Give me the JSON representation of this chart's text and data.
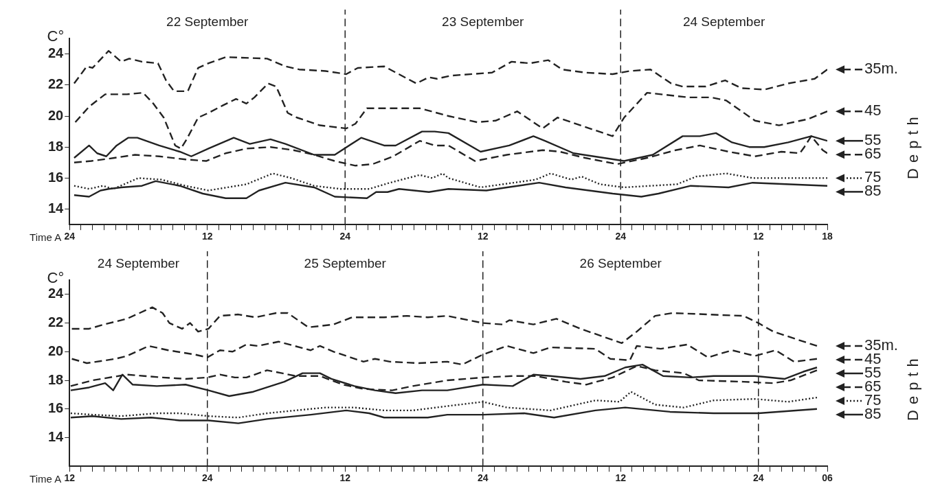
{
  "chart_data": [
    {
      "type": "line",
      "xlabel": "Time A",
      "ylabel": "C°",
      "legend_title": "Depth",
      "xlim": [
        "--09-22T00:00",
        "--09-24T18:00"
      ],
      "ylim": [
        13,
        25
      ],
      "yticks": [
        14,
        16,
        18,
        20,
        22,
        24
      ],
      "xticks": [
        {
          "value": "--09-22T00:00",
          "label": "24"
        },
        {
          "value": "--09-22T01:00",
          "label": null
        },
        {
          "value": "--09-22T02:00",
          "label": null
        },
        {
          "value": "--09-22T03:00",
          "label": null
        },
        {
          "value": "--09-22T04:00",
          "label": null
        },
        {
          "value": "--09-22T05:00",
          "label": null
        },
        {
          "value": "--09-22T06:00",
          "label": null
        },
        {
          "value": "--09-22T07:00",
          "label": null
        },
        {
          "value": "--09-22T08:00",
          "label": null
        },
        {
          "value": "--09-22T09:00",
          "label": null
        },
        {
          "value": "--09-22T10:00",
          "label": null
        },
        {
          "value": "--09-22T11:00",
          "label": null
        },
        {
          "value": "--09-22T12:00",
          "label": "12"
        },
        {
          "value": "--09-22T13:00",
          "label": null
        },
        {
          "value": "--09-22T14:00",
          "label": null
        },
        {
          "value": "--09-22T15:00",
          "label": null
        },
        {
          "value": "--09-22T16:00",
          "label": null
        },
        {
          "value": "--09-22T17:00",
          "label": null
        },
        {
          "value": "--09-22T18:00",
          "label": null
        },
        {
          "value": "--09-22T19:00",
          "label": null
        },
        {
          "value": "--09-22T20:00",
          "label": null
        },
        {
          "value": "--09-22T21:00",
          "label": null
        },
        {
          "value": "--09-22T22:00",
          "label": null
        },
        {
          "value": "--09-22T23:00",
          "label": null
        },
        {
          "value": "--09-23T00:00",
          "label": "24"
        },
        {
          "value": "--09-23T01:00",
          "label": null
        },
        {
          "value": "--09-23T02:00",
          "label": null
        },
        {
          "value": "--09-23T03:00",
          "label": null
        },
        {
          "value": "--09-23T04:00",
          "label": null
        },
        {
          "value": "--09-23T05:00",
          "label": null
        },
        {
          "value": "--09-23T06:00",
          "label": null
        },
        {
          "value": "--09-23T07:00",
          "label": null
        },
        {
          "value": "--09-23T08:00",
          "label": null
        },
        {
          "value": "--09-23T09:00",
          "label": null
        },
        {
          "value": "--09-23T10:00",
          "label": null
        },
        {
          "value": "--09-23T11:00",
          "label": null
        },
        {
          "value": "--09-23T12:00",
          "label": "12"
        },
        {
          "value": "--09-23T13:00",
          "label": null
        },
        {
          "value": "--09-23T14:00",
          "label": null
        },
        {
          "value": "--09-23T15:00",
          "label": null
        },
        {
          "value": "--09-23T16:00",
          "label": null
        },
        {
          "value": "--09-23T17:00",
          "label": null
        },
        {
          "value": "--09-23T18:00",
          "label": null
        },
        {
          "value": "--09-23T19:00",
          "label": null
        },
        {
          "value": "--09-23T20:00",
          "label": null
        },
        {
          "value": "--09-23T21:00",
          "label": null
        },
        {
          "value": "--09-23T22:00",
          "label": null
        },
        {
          "value": "--09-23T23:00",
          "label": null
        },
        {
          "value": "--09-24T00:00",
          "label": "24"
        },
        {
          "value": "--09-24T01:00",
          "label": null
        },
        {
          "value": "--09-24T02:00",
          "label": null
        },
        {
          "value": "--09-24T03:00",
          "label": null
        },
        {
          "value": "--09-24T04:00",
          "label": null
        },
        {
          "value": "--09-24T05:00",
          "label": null
        },
        {
          "value": "--09-24T06:00",
          "label": null
        },
        {
          "value": "--09-24T07:00",
          "label": null
        },
        {
          "value": "--09-24T08:00",
          "label": null
        },
        {
          "value": "--09-24T09:00",
          "label": null
        },
        {
          "value": "--09-24T10:00",
          "label": null
        },
        {
          "value": "--09-24T11:00",
          "label": null
        },
        {
          "value": "--09-24T12:00",
          "label": "12"
        },
        {
          "value": "--09-24T13:00",
          "label": null
        },
        {
          "value": "--09-24T14:00",
          "label": null
        },
        {
          "value": "--09-24T15:00",
          "label": null
        },
        {
          "value": "--09-24T16:00",
          "label": null
        },
        {
          "value": "--09-24T17:00",
          "label": null
        },
        {
          "value": "--09-24T18:00",
          "label": "18"
        }
      ],
      "annotations": [
        "22 September",
        "23 September",
        "24 September"
      ],
      "legend": "right",
      "ref_lines": [
        {
          "axis": "x",
          "value": "--09-23T00:00",
          "line_style": "dashed",
          "color": "#222222"
        },
        {
          "axis": "x",
          "value": "--09-24T00:00",
          "line_style": "dashed",
          "color": "#222222"
        }
      ],
      "series": [
        {
          "name": "35m.",
          "color": "#222222",
          "line_style": "dashed",
          "x": [
            "--09-22T00:24",
            "--09-22T01:30",
            "--09-22T02:00",
            "--09-22T03:24",
            "--09-22T04:30",
            "--09-22T05:12",
            "--09-22T06:18",
            "--09-22T07:42",
            "--09-22T08:24",
            "--09-22T09:06",
            "--09-22T10:18",
            "--09-22T11:12",
            "--09-22T12:06",
            "--09-22T13:36",
            "--09-22T17:12",
            "--09-22T18:48",
            "--09-22T20:00",
            "--09-22T22:18",
            "--09-23T00:06",
            "--09-23T01:06",
            "--09-23T03:24",
            "--09-23T06:12",
            "--09-23T07:18",
            "--09-23T08:00",
            "--09-23T09:12",
            "--09-23T12:48",
            "--09-23T14:30",
            "--09-23T16:06",
            "--09-23T17:42",
            "--09-23T18:54",
            "--09-23T20:54",
            "--09-23T23:18",
            "--09-24T00:48",
            "--09-24T02:36",
            "--09-24T04:24",
            "--09-24T05:24",
            "--09-24T07:24",
            "--09-24T09:06",
            "--09-24T10:30",
            "--09-24T12:30",
            "--09-24T14:36",
            "--09-24T16:54",
            "--09-24T18:00"
          ],
          "values": [
            22.1,
            23.2,
            23.1,
            24.2,
            23.5,
            23.7,
            23.5,
            23.4,
            22.3,
            21.6,
            21.6,
            23.1,
            23.4,
            23.8,
            23.7,
            23.2,
            23.0,
            22.9,
            22.7,
            23.1,
            23.2,
            22.1,
            22.5,
            22.4,
            22.6,
            22.8,
            23.5,
            23.4,
            23.6,
            23.0,
            22.8,
            22.7,
            22.9,
            23.0,
            22.1,
            21.9,
            21.9,
            22.3,
            21.8,
            21.7,
            22.1,
            22.4,
            23.0
          ]
        },
        {
          "name": "45",
          "color": "#222222",
          "line_style": "dashed",
          "x": [
            "--09-22T00:30",
            "--09-22T01:42",
            "--09-22T03:06",
            "--09-22T05:00",
            "--09-22T06:24",
            "--09-22T07:18",
            "--09-22T08:12",
            "--09-22T09:12",
            "--09-22T09:42",
            "--09-22T10:12",
            "--09-22T11:12",
            "--09-22T12:06",
            "--09-22T13:24",
            "--09-22T14:30",
            "--09-22T15:24",
            "--09-22T16:06",
            "--09-22T17:18",
            "--09-22T18:00",
            "--09-22T19:00",
            "--09-22T19:48",
            "--09-22T21:48",
            "--09-23T00:06",
            "--09-23T00:54",
            "--09-23T01:54",
            "--09-23T03:24",
            "--09-23T06:30",
            "--09-23T09:00",
            "--09-23T11:30",
            "--09-23T13:06",
            "--09-23T15:00",
            "--09-23T17:12",
            "--09-23T18:30",
            "--09-23T20:54",
            "--09-23T23:18",
            "--09-24T00:18",
            "--09-24T02:18",
            "--09-24T05:54",
            "--09-24T07:54",
            "--09-24T09:12",
            "--09-24T11:42",
            "--09-24T13:48",
            "--09-24T16:18",
            "--09-24T18:00"
          ],
          "values": [
            19.6,
            20.6,
            21.4,
            21.4,
            21.5,
            20.8,
            19.9,
            18.1,
            17.9,
            18.5,
            19.9,
            20.2,
            20.7,
            21.1,
            20.8,
            21.2,
            22.1,
            21.9,
            20.2,
            19.9,
            19.4,
            19.2,
            19.5,
            20.5,
            20.5,
            20.5,
            20.0,
            19.6,
            19.7,
            20.3,
            19.2,
            19.9,
            19.3,
            18.7,
            19.9,
            21.5,
            21.2,
            21.2,
            21.0,
            19.7,
            19.4,
            19.8,
            20.3
          ]
        },
        {
          "name": "55",
          "color": "#222222",
          "line_style": "solid",
          "x": [
            "--09-22T00:24",
            "--09-22T01:42",
            "--09-22T02:24",
            "--09-22T03:12",
            "--09-22T04:06",
            "--09-22T05:06",
            "--09-22T05:54",
            "--09-22T07:48",
            "--09-22T09:36",
            "--09-22T10:36",
            "--09-22T12:06",
            "--09-22T14:18",
            "--09-22T15:42",
            "--09-22T17:30",
            "--09-22T18:48",
            "--09-22T21:18",
            "--09-22T23:06",
            "--09-23T01:24",
            "--09-23T03:24",
            "--09-23T04:24",
            "--09-23T06:42",
            "--09-23T07:48",
            "--09-23T09:00",
            "--09-23T11:48",
            "--09-23T14:18",
            "--09-23T16:24",
            "--09-23T17:24",
            "--09-23T19:54",
            "--09-24T00:18",
            "--09-24T02:48",
            "--09-24T05:24",
            "--09-24T06:54",
            "--09-24T08:18",
            "--09-24T09:42",
            "--09-24T11:12",
            "--09-24T12:30",
            "--09-24T14:36",
            "--09-24T16:36",
            "--09-24T18:00"
          ],
          "values": [
            17.3,
            18.1,
            17.6,
            17.4,
            18.1,
            18.6,
            18.6,
            18.1,
            17.7,
            17.4,
            17.9,
            18.6,
            18.2,
            18.5,
            18.2,
            17.5,
            17.5,
            18.6,
            18.1,
            18.1,
            19.0,
            19.0,
            18.9,
            17.7,
            18.1,
            18.7,
            18.4,
            17.6,
            17.1,
            17.5,
            18.7,
            18.7,
            18.9,
            18.3,
            18.0,
            18.0,
            18.3,
            18.7,
            18.4
          ]
        },
        {
          "name": "65",
          "color": "#222222",
          "line_style": "dashed",
          "x": [
            "--09-22T00:24",
            "--09-22T01:54",
            "--09-22T03:54",
            "--09-22T05:42",
            "--09-22T07:48",
            "--09-22T10:06",
            "--09-22T11:54",
            "--09-22T13:36",
            "--09-22T15:24",
            "--09-22T17:30",
            "--09-22T19:30",
            "--09-22T21:18",
            "--09-22T23:06",
            "--09-23T00:54",
            "--09-23T02:24",
            "--09-23T04:12",
            "--09-23T06:30",
            "--09-23T07:48",
            "--09-23T09:00",
            "--09-23T11:18",
            "--09-23T14:06",
            "--09-23T17:12",
            "--09-23T18:42",
            "--09-23T20:54",
            "--09-23T23:42",
            "--09-24T02:18",
            "--09-24T04:48",
            "--09-24T06:54",
            "--09-24T09:24",
            "--09-24T11:42",
            "--09-24T14:00",
            "--09-24T15:36",
            "--09-24T16:00",
            "--09-24T16:36",
            "--09-24T17:36",
            "--09-24T18:00"
          ],
          "values": [
            17.0,
            17.1,
            17.3,
            17.5,
            17.4,
            17.2,
            17.1,
            17.6,
            17.9,
            18.0,
            17.8,
            17.5,
            17.1,
            16.8,
            16.9,
            17.4,
            18.4,
            18.1,
            18.1,
            17.1,
            17.5,
            17.8,
            17.7,
            17.3,
            16.9,
            17.3,
            17.8,
            18.1,
            17.7,
            17.4,
            17.7,
            17.6,
            18.0,
            18.7,
            17.8,
            17.6
          ]
        },
        {
          "name": "75",
          "color": "#222222",
          "line_style": "dotted",
          "x": [
            "--09-22T00:24",
            "--09-22T01:42",
            "--09-22T02:54",
            "--09-22T03:48",
            "--09-22T06:00",
            "--09-22T08:00",
            "--09-22T10:06",
            "--09-22T12:06",
            "--09-22T15:24",
            "--09-22T17:42",
            "--09-22T19:18",
            "--09-22T21:18",
            "--09-22T23:36",
            "--09-23T02:06",
            "--09-23T03:54",
            "--09-23T06:30",
            "--09-23T07:36",
            "--09-23T08:30",
            "--09-23T09:00",
            "--09-23T11:48",
            "--09-23T16:36",
            "--09-23T17:54",
            "--09-23T19:42",
            "--09-23T20:36",
            "--09-23T22:12",
            "--09-24T00:18",
            "--09-24T04:54",
            "--09-24T06:36",
            "--09-24T09:12",
            "--09-24T11:30",
            "--09-24T18:00"
          ],
          "values": [
            15.5,
            15.3,
            15.5,
            15.3,
            16.0,
            15.9,
            15.5,
            15.2,
            15.6,
            16.3,
            16.0,
            15.5,
            15.3,
            15.3,
            15.7,
            16.2,
            16.0,
            16.3,
            16.0,
            15.4,
            15.9,
            16.3,
            15.9,
            16.1,
            15.6,
            15.4,
            15.6,
            16.1,
            16.3,
            16.0,
            16.0
          ]
        },
        {
          "name": "85",
          "color": "#222222",
          "line_style": "solid",
          "x": [
            "--09-22T00:24",
            "--09-22T01:42",
            "--09-22T02:42",
            "--09-22T03:24",
            "--09-22T04:30",
            "--09-22T06:18",
            "--09-22T07:30",
            "--09-22T09:36",
            "--09-22T11:36",
            "--09-22T13:36",
            "--09-22T15:24",
            "--09-22T16:30",
            "--09-22T18:48",
            "--09-22T21:18",
            "--09-22T23:06",
            "--09-23T01:54",
            "--09-23T02:42",
            "--09-23T03:42",
            "--09-23T04:42",
            "--09-23T07:18",
            "--09-23T09:00",
            "--09-23T12:18",
            "--09-23T14:06",
            "--09-23T16:54",
            "--09-23T19:12",
            "--09-23T23:18",
            "--09-24T01:48",
            "--09-24T03:18",
            "--09-24T06:06",
            "--09-24T09:24",
            "--09-24T11:30",
            "--09-24T18:00"
          ],
          "values": [
            14.9,
            14.8,
            15.2,
            15.3,
            15.4,
            15.5,
            15.8,
            15.5,
            15.0,
            14.7,
            14.7,
            15.2,
            15.7,
            15.4,
            14.8,
            14.7,
            15.1,
            15.1,
            15.3,
            15.1,
            15.3,
            15.2,
            15.4,
            15.7,
            15.4,
            15.0,
            14.8,
            15.0,
            15.5,
            15.4,
            15.7,
            15.5
          ]
        }
      ]
    },
    {
      "type": "line",
      "xlabel": "Time A",
      "ylabel": "C°",
      "legend_title": "Depth",
      "xlim": [
        "--09-24T12:00",
        "--09-27T06:00"
      ],
      "ylim": [
        12,
        25
      ],
      "yticks": [
        14,
        16,
        18,
        20,
        22,
        24
      ],
      "xticks": [
        {
          "value": "--09-24T12:00",
          "label": "12"
        },
        {
          "value": "--09-24T13:00",
          "label": null
        },
        {
          "value": "--09-24T14:00",
          "label": null
        },
        {
          "value": "--09-24T15:00",
          "label": null
        },
        {
          "value": "--09-24T16:00",
          "label": null
        },
        {
          "value": "--09-24T17:00",
          "label": null
        },
        {
          "value": "--09-24T18:00",
          "label": null
        },
        {
          "value": "--09-24T19:00",
          "label": null
        },
        {
          "value": "--09-24T20:00",
          "label": null
        },
        {
          "value": "--09-24T21:00",
          "label": null
        },
        {
          "value": "--09-24T22:00",
          "label": null
        },
        {
          "value": "--09-24T23:00",
          "label": null
        },
        {
          "value": "--09-25T00:00",
          "label": "24"
        },
        {
          "value": "--09-25T01:00",
          "label": null
        },
        {
          "value": "--09-25T02:00",
          "label": null
        },
        {
          "value": "--09-25T03:00",
          "label": null
        },
        {
          "value": "--09-25T04:00",
          "label": null
        },
        {
          "value": "--09-25T05:00",
          "label": null
        },
        {
          "value": "--09-25T06:00",
          "label": null
        },
        {
          "value": "--09-25T07:00",
          "label": null
        },
        {
          "value": "--09-25T08:00",
          "label": null
        },
        {
          "value": "--09-25T09:00",
          "label": null
        },
        {
          "value": "--09-25T10:00",
          "label": null
        },
        {
          "value": "--09-25T11:00",
          "label": null
        },
        {
          "value": "--09-25T12:00",
          "label": "12"
        },
        {
          "value": "--09-25T13:00",
          "label": null
        },
        {
          "value": "--09-25T14:00",
          "label": null
        },
        {
          "value": "--09-25T15:00",
          "label": null
        },
        {
          "value": "--09-25T16:00",
          "label": null
        },
        {
          "value": "--09-25T17:00",
          "label": null
        },
        {
          "value": "--09-25T18:00",
          "label": null
        },
        {
          "value": "--09-25T19:00",
          "label": null
        },
        {
          "value": "--09-25T20:00",
          "label": null
        },
        {
          "value": "--09-25T21:00",
          "label": null
        },
        {
          "value": "--09-25T22:00",
          "label": null
        },
        {
          "value": "--09-25T23:00",
          "label": null
        },
        {
          "value": "--09-26T00:00",
          "label": "24"
        },
        {
          "value": "--09-26T01:00",
          "label": null
        },
        {
          "value": "--09-26T02:00",
          "label": null
        },
        {
          "value": "--09-26T03:00",
          "label": null
        },
        {
          "value": "--09-26T04:00",
          "label": null
        },
        {
          "value": "--09-26T05:00",
          "label": null
        },
        {
          "value": "--09-26T06:00",
          "label": null
        },
        {
          "value": "--09-26T07:00",
          "label": null
        },
        {
          "value": "--09-26T08:00",
          "label": null
        },
        {
          "value": "--09-26T09:00",
          "label": null
        },
        {
          "value": "--09-26T10:00",
          "label": null
        },
        {
          "value": "--09-26T11:00",
          "label": null
        },
        {
          "value": "--09-26T12:00",
          "label": "12"
        },
        {
          "value": "--09-26T13:00",
          "label": null
        },
        {
          "value": "--09-26T14:00",
          "label": null
        },
        {
          "value": "--09-26T15:00",
          "label": null
        },
        {
          "value": "--09-26T16:00",
          "label": null
        },
        {
          "value": "--09-26T17:00",
          "label": null
        },
        {
          "value": "--09-26T18:00",
          "label": null
        },
        {
          "value": "--09-26T19:00",
          "label": null
        },
        {
          "value": "--09-26T20:00",
          "label": null
        },
        {
          "value": "--09-26T21:00",
          "label": null
        },
        {
          "value": "--09-26T22:00",
          "label": null
        },
        {
          "value": "--09-26T23:00",
          "label": null
        },
        {
          "value": "--09-27T00:00",
          "label": "24"
        },
        {
          "value": "--09-27T01:00",
          "label": null
        },
        {
          "value": "--09-27T02:00",
          "label": null
        },
        {
          "value": "--09-27T03:00",
          "label": null
        },
        {
          "value": "--09-27T04:00",
          "label": null
        },
        {
          "value": "--09-27T05:00",
          "label": null
        },
        {
          "value": "--09-27T06:00",
          "label": "06"
        }
      ],
      "annotations": [
        "24 September",
        "25 September",
        "26 September"
      ],
      "legend": "right",
      "ref_lines": [
        {
          "axis": "x",
          "value": "--09-25T00:00",
          "line_style": "dashed",
          "color": "#222222"
        },
        {
          "axis": "x",
          "value": "--09-26T00:00",
          "line_style": "dashed",
          "color": "#222222"
        },
        {
          "axis": "x",
          "value": "--09-27T00:00",
          "line_style": "dashed",
          "color": "#222222"
        }
      ],
      "series": [
        {
          "name": "35m.",
          "color": "#222222",
          "line_style": "dashed",
          "x": [
            "--09-24T12:12",
            "--09-24T13:42",
            "--09-24T15:00",
            "--09-24T17:00",
            "--09-24T19:12",
            "--09-24T20:06",
            "--09-24T20:42",
            "--09-24T21:48",
            "--09-24T22:30",
            "--09-24T23:12",
            "--09-25T00:06",
            "--09-25T01:06",
            "--09-25T02:42",
            "--09-25T04:12",
            "--09-25T06:00",
            "--09-25T07:00",
            "--09-25T08:48",
            "--09-25T11:00",
            "--09-25T12:36",
            "--09-25T15:24",
            "--09-25T17:24",
            "--09-25T19:12",
            "--09-25T20:54",
            "--09-26T00:00",
            "--09-26T01:42",
            "--09-26T02:18",
            "--09-26T04:24",
            "--09-26T06:24",
            "--09-26T08:30",
            "--09-26T12:06",
            "--09-26T13:24",
            "--09-26T15:00",
            "--09-26T16:30",
            "--09-26T22:42",
            "--09-27T00:00",
            "--09-27T01:18",
            "--09-27T05:06"
          ],
          "values": [
            21.6,
            21.6,
            21.9,
            22.3,
            23.1,
            22.7,
            22.0,
            21.6,
            22.0,
            21.4,
            21.6,
            22.5,
            22.6,
            22.4,
            22.7,
            22.7,
            21.7,
            21.9,
            22.4,
            22.4,
            22.5,
            22.4,
            22.5,
            22.0,
            21.9,
            22.2,
            21.9,
            22.3,
            21.6,
            20.6,
            21.4,
            22.5,
            22.7,
            22.5,
            22.0,
            21.4,
            20.4
          ]
        },
        {
          "name": "45",
          "color": "#222222",
          "line_style": "dashed",
          "x": [
            "--09-24T12:12",
            "--09-24T13:30",
            "--09-24T16:00",
            "--09-24T17:00",
            "--09-24T18:54",
            "--09-24T20:36",
            "--09-24T22:54",
            "--09-25T00:00",
            "--09-25T01:06",
            "--09-25T02:12",
            "--09-25T03:24",
            "--09-25T04:24",
            "--09-25T06:12",
            "--09-25T09:00",
            "--09-25T09:48",
            "--09-25T11:00",
            "--09-25T13:36",
            "--09-25T14:36",
            "--09-25T15:54",
            "--09-25T18:24",
            "--09-25T20:54",
            "--09-25T22:12",
            "--09-26T00:00",
            "--09-26T02:06",
            "--09-26T04:24",
            "--09-26T05:54",
            "--09-26T09:48",
            "--09-26T11:06",
            "--09-26T12:48",
            "--09-26T13:24",
            "--09-26T15:30",
            "--09-26T17:48",
            "--09-26T19:36",
            "--09-26T21:42",
            "--09-26T23:42",
            "--09-27T01:30",
            "--09-27T03:06",
            "--09-27T05:06"
          ],
          "values": [
            19.5,
            19.2,
            19.5,
            19.7,
            20.4,
            20.1,
            19.8,
            19.6,
            20.1,
            20.0,
            20.5,
            20.4,
            20.7,
            20.1,
            20.4,
            20.0,
            19.3,
            19.5,
            19.3,
            19.2,
            19.3,
            19.1,
            19.8,
            20.4,
            19.9,
            20.3,
            20.2,
            19.5,
            19.4,
            20.4,
            20.2,
            20.5,
            19.6,
            20.1,
            19.7,
            20.1,
            19.3,
            19.5
          ]
        },
        {
          "name": "55",
          "color": "#222222",
          "line_style": "solid",
          "x": [
            "--09-24T12:06",
            "--09-24T13:42",
            "--09-24T15:06",
            "--09-24T15:48",
            "--09-24T16:36",
            "--09-24T17:30",
            "--09-24T19:36",
            "--09-24T22:06",
            "--09-25T00:06",
            "--09-25T01:54",
            "--09-25T04:00",
            "--09-25T06:42",
            "--09-25T08:18",
            "--09-25T09:48",
            "--09-25T10:48",
            "--09-25T12:48",
            "--09-25T14:36",
            "--09-25T16:24",
            "--09-25T18:42",
            "--09-25T20:54",
            "--09-26T00:00",
            "--09-26T02:36",
            "--09-26T04:24",
            "--09-26T05:54",
            "--09-26T08:30",
            "--09-26T10:36",
            "--09-26T12:24",
            "--09-26T13:54",
            "--09-26T15:42",
            "--09-26T18:06",
            "--09-26T20:06",
            "--09-26T23:42",
            "--09-27T02:18",
            "--09-27T03:54",
            "--09-27T05:06"
          ],
          "values": [
            17.3,
            17.5,
            17.8,
            17.3,
            18.4,
            17.7,
            17.6,
            17.7,
            17.3,
            16.9,
            17.2,
            17.9,
            18.5,
            18.5,
            18.1,
            17.6,
            17.3,
            17.1,
            17.3,
            17.3,
            17.7,
            17.6,
            18.4,
            18.3,
            18.1,
            18.3,
            18.9,
            19.1,
            18.3,
            18.2,
            18.3,
            18.3,
            18.1,
            18.6,
            18.9
          ]
        },
        {
          "name": "65",
          "color": "#222222",
          "line_style": "dashed",
          "x": [
            "--09-24T12:06",
            "--09-24T14:00",
            "--09-24T17:00",
            "--09-24T18:30",
            "--09-24T20:06",
            "--09-24T22:06",
            "--09-25T00:00",
            "--09-25T01:06",
            "--09-25T02:24",
            "--09-25T03:24",
            "--09-25T05:12",
            "--09-25T06:30",
            "--09-25T07:42",
            "--09-25T09:48",
            "--09-25T11:48",
            "--09-25T13:36",
            "--09-25T16:06",
            "--09-25T17:54",
            "--09-25T20:54",
            "--09-26T00:00",
            "--09-26T02:36",
            "--09-26T04:36",
            "--09-26T07:12",
            "--09-26T09:00",
            "--09-26T11:18",
            "--09-26T13:24",
            "--09-26T15:00",
            "--09-26T17:30",
            "--09-26T18:48",
            "--09-26T22:42",
            "--09-27T01:18",
            "--09-27T02:48",
            "--09-27T05:06"
          ],
          "values": [
            17.6,
            18.0,
            18.4,
            18.3,
            18.2,
            18.1,
            18.2,
            18.4,
            18.2,
            18.2,
            18.7,
            18.5,
            18.3,
            18.3,
            17.7,
            17.4,
            17.3,
            17.6,
            18.0,
            18.2,
            18.3,
            18.3,
            17.9,
            17.7,
            18.2,
            19.0,
            18.7,
            18.5,
            18.0,
            17.9,
            17.8,
            18.0,
            18.7
          ]
        },
        {
          "name": "75",
          "color": "#222222",
          "line_style": "dotted",
          "x": [
            "--09-24T12:06",
            "--09-24T14:00",
            "--09-24T16:30",
            "--09-24T19:36",
            "--09-24T21:36",
            "--09-25T00:06",
            "--09-25T02:42",
            "--09-25T05:12",
            "--09-25T07:42",
            "--09-25T10:18",
            "--09-25T12:48",
            "--09-25T15:24",
            "--09-25T17:54",
            "--09-25T20:54",
            "--09-26T00:00",
            "--09-26T02:06",
            "--09-26T05:54",
            "--09-26T09:48",
            "--09-26T11:54",
            "--09-26T12:54",
            "--09-26T15:00",
            "--09-26T17:30",
            "--09-26T20:06",
            "--09-26T23:42",
            "--09-27T02:36",
            "--09-27T05:06"
          ],
          "values": [
            15.7,
            15.6,
            15.5,
            15.7,
            15.7,
            15.5,
            15.4,
            15.7,
            15.9,
            16.1,
            16.1,
            15.9,
            15.9,
            16.2,
            16.5,
            16.1,
            15.9,
            16.6,
            16.5,
            17.2,
            16.3,
            16.1,
            16.6,
            16.7,
            16.5,
            16.8
          ]
        },
        {
          "name": "85",
          "color": "#222222",
          "line_style": "solid",
          "x": [
            "--09-24T12:06",
            "--09-24T14:00",
            "--09-24T16:30",
            "--09-24T19:06",
            "--09-24T21:36",
            "--09-25T00:06",
            "--09-25T02:42",
            "--09-25T05:12",
            "--09-25T09:00",
            "--09-25T12:06",
            "--09-25T14:06",
            "--09-25T15:24",
            "--09-25T19:12",
            "--09-25T20:54",
            "--09-26T00:00",
            "--09-26T03:36",
            "--09-26T06:12",
            "--09-26T09:48",
            "--09-26T12:24",
            "--09-26T16:18",
            "--09-26T20:06",
            "--09-27T00:00",
            "--09-27T05:06"
          ],
          "values": [
            15.4,
            15.5,
            15.3,
            15.4,
            15.2,
            15.2,
            15.0,
            15.3,
            15.6,
            15.9,
            15.7,
            15.4,
            15.4,
            15.6,
            15.6,
            15.7,
            15.4,
            15.9,
            16.1,
            15.8,
            15.7,
            15.7,
            16.0
          ]
        }
      ]
    }
  ]
}
